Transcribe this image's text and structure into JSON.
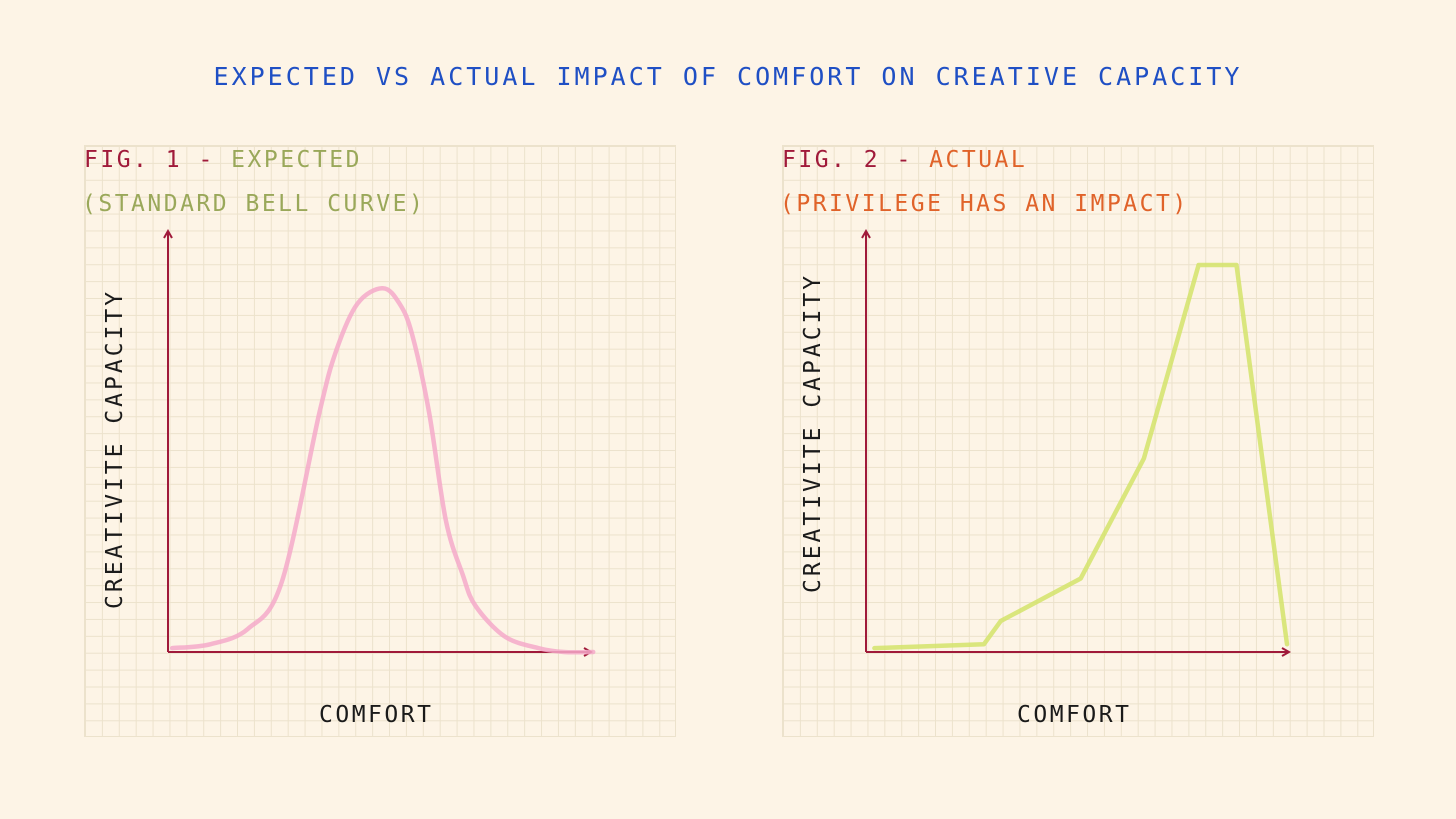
{
  "title": "EXPECTED VS ACTUAL IMPACT OF COMFORT ON CREATIVE CAPACITY",
  "colors": {
    "title": "#1f4fc4",
    "axis": "#a01a3a",
    "fig1_accent": "#9aa85a",
    "fig2_accent": "#e0632a",
    "curve1": "#f5a9c9",
    "curve2": "#d3e36a",
    "background": "#fdf4e6"
  },
  "figures": [
    {
      "fig_label": "FIG. 1",
      "separator": "-",
      "name": "EXPECTED",
      "subtitle": "(STANDARD BELL CURVE)"
    },
    {
      "fig_label": "FIG. 2",
      "separator": "-",
      "name": "ACTUAL",
      "subtitle": "(PRIVILEGE HAS AN IMPACT)"
    }
  ],
  "chart_data": [
    {
      "type": "line",
      "title": "FIG. 1 - EXPECTED (STANDARD BELL CURVE)",
      "xlabel": "COMFORT",
      "ylabel": "CREATIVITE CAPACITY",
      "xlim": [
        0,
        100
      ],
      "ylim": [
        0,
        100
      ],
      "grid": true,
      "ticks_shown": false,
      "series": [
        {
          "color": "#f5a9c9",
          "x": [
            1,
            10,
            19,
            27,
            36,
            40,
            45,
            51,
            55,
            58,
            62,
            66,
            70,
            73,
            80,
            88,
            94,
            101
          ],
          "y": [
            1,
            2,
            6,
            18,
            62,
            78,
            90,
            94,
            90,
            82,
            62,
            34,
            20,
            12,
            4,
            1,
            0,
            0
          ]
        }
      ]
    },
    {
      "type": "line",
      "title": "FIG. 2 - ACTUAL (PRIVILEGE HAS AN IMPACT)",
      "xlabel": "COMFORT",
      "ylabel": "CREATIVITE CAPACITY",
      "xlim": [
        0,
        100
      ],
      "ylim": [
        0,
        100
      ],
      "grid": true,
      "ticks_shown": false,
      "series": [
        {
          "color": "#d3e36a",
          "x": [
            2,
            28,
            32,
            51,
            66,
            79,
            80,
            88,
            100
          ],
          "y": [
            1,
            2,
            8,
            19,
            50,
            100,
            100,
            100,
            2
          ]
        }
      ]
    }
  ]
}
